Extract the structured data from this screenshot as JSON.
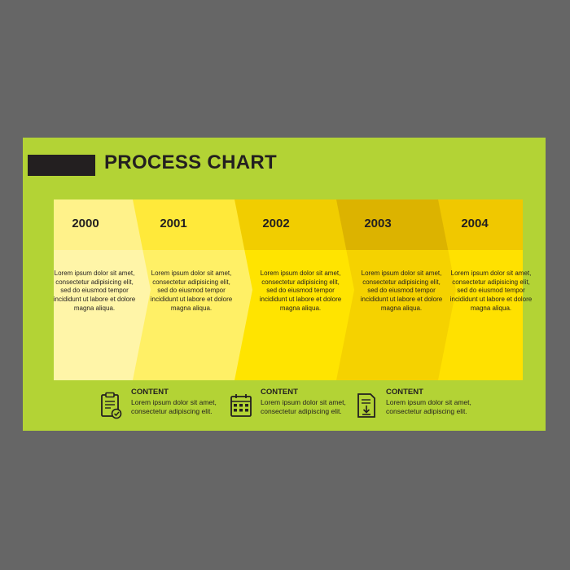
{
  "title": "PROCESS CHART",
  "colors": {
    "background": "#666666",
    "card": "#b3d335",
    "dark": "#231f20"
  },
  "steps": [
    {
      "year": "2000",
      "text": "Lorem ipsum dolor sit amet, consectetur adipisicing elit, sed do eiusmod tempor incididunt ut labore et dolore magna aliqua.",
      "header_color": "#fff28a",
      "body_color": "#fff5a8"
    },
    {
      "year": "2001",
      "text": "Lorem ipsum dolor sit amet, consectetur adipisicing elit, sed do eiusmod tempor incididunt ut labore et dolore magna aliqua.",
      "header_color": "#ffe93a",
      "body_color": "#fff066"
    },
    {
      "year": "2002",
      "text": "Lorem ipsum dolor sit amet, consectetur adipisicing elit, sed do eiusmod tempor incididunt ut labore et dolore magna aliqua.",
      "header_color": "#f1cd00",
      "body_color": "#ffe400"
    },
    {
      "year": "2003",
      "text": "Lorem ipsum dolor sit amet, consectetur adipisicing elit, sed do eiusmod tempor incididunt ut labore et dolore magna aliqua.",
      "header_color": "#dcb300",
      "body_color": "#f5d200"
    },
    {
      "year": "2004",
      "text": "Lorem ipsum dolor sit amet, consectetur adipisicing elit, sed do eiusmod tempor incididunt ut labore et dolore magna aliqua.",
      "header_color": "#f0c800",
      "body_color": "#ffe100"
    }
  ],
  "content_items": [
    {
      "icon": "clipboard-check-icon",
      "heading": "CONTENT",
      "body": "Lorem ipsum dolor sit amet, consectetur adipiscing elit."
    },
    {
      "icon": "calendar-grid-icon",
      "heading": "CONTENT",
      "body": "Lorem ipsum dolor sit amet, consectetur adipiscing elit."
    },
    {
      "icon": "document-download-icon",
      "heading": "CONTENT",
      "body": "Lorem ipsum dolor sit amet, consectetur adipiscing elit."
    }
  ]
}
